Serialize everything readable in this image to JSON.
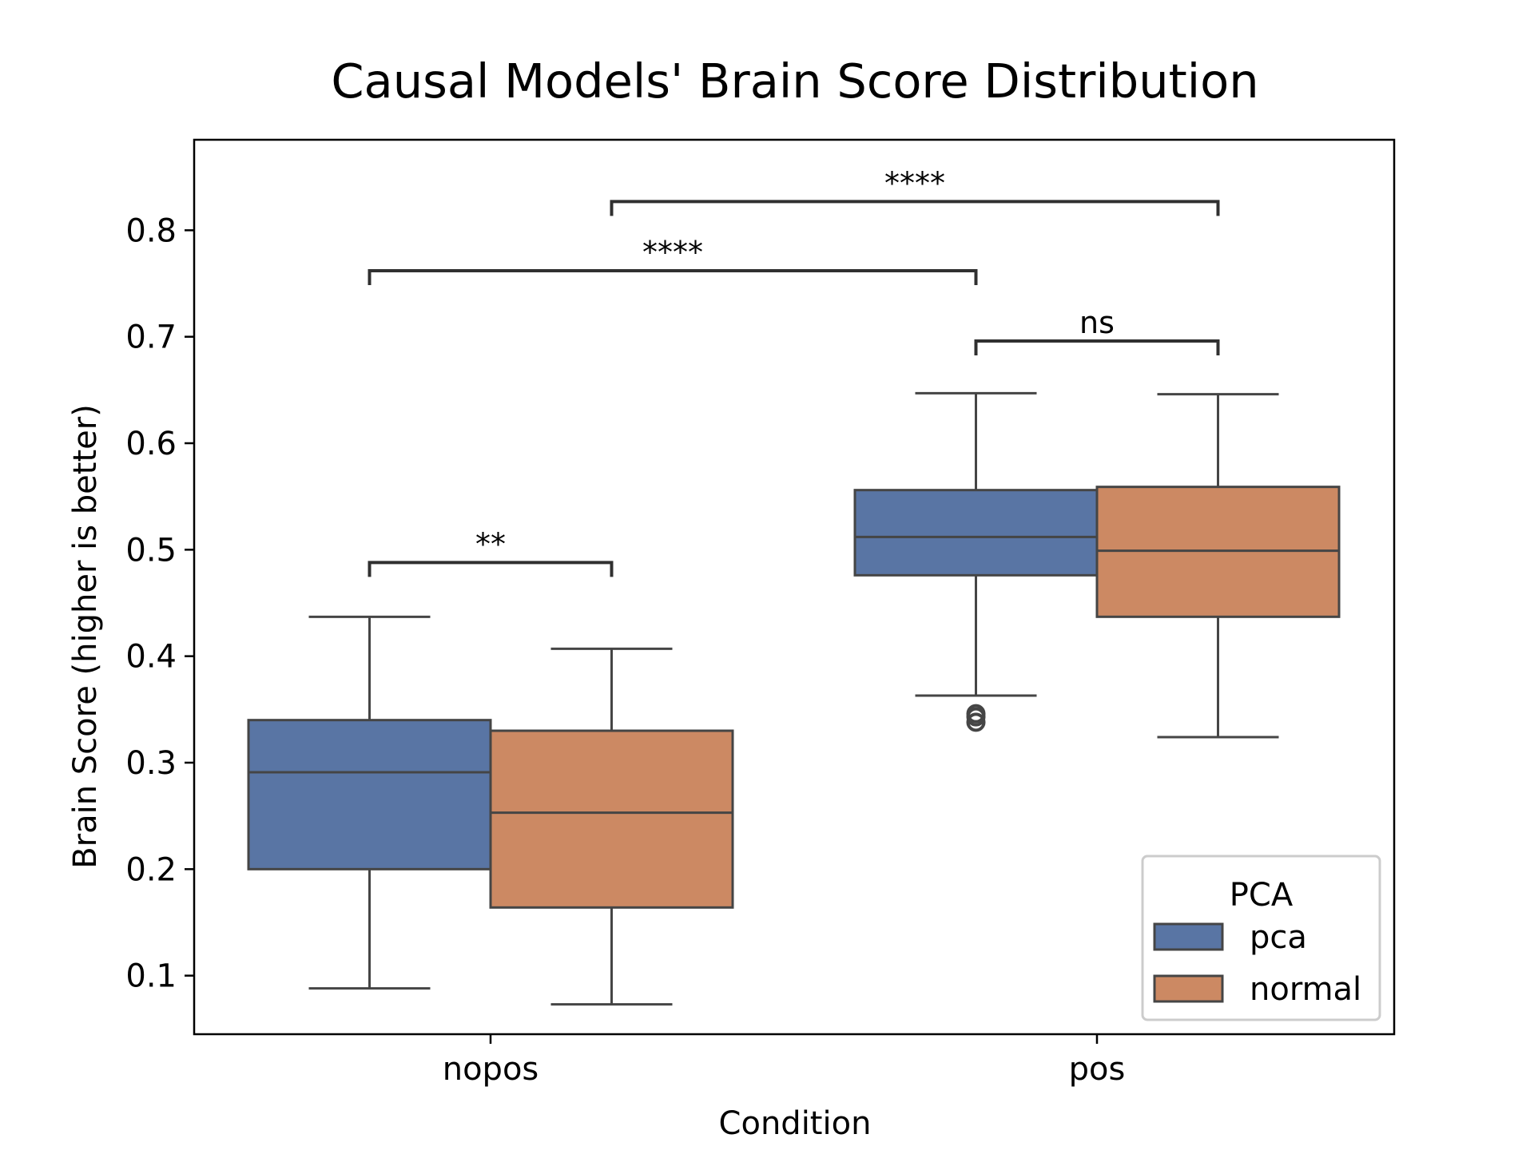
{
  "chart_data": {
    "type": "box",
    "title": "Causal Models' Brain Score Distribution",
    "xlabel": "Condition",
    "ylabel": "Brain Score (higher is better)",
    "ylim": [
      0.045,
      0.885
    ],
    "yticks": [
      0.1,
      0.2,
      0.3,
      0.4,
      0.5,
      0.6,
      0.7,
      0.8
    ],
    "ytick_labels": [
      "0.1",
      "0.2",
      "0.3",
      "0.4",
      "0.5",
      "0.6",
      "0.7",
      "0.8"
    ],
    "categories": [
      "nopos",
      "pos"
    ],
    "grid": false,
    "legend": {
      "title": "PCA",
      "position": "bottom-right",
      "entries": [
        {
          "label": "pca",
          "color": "#5975a4"
        },
        {
          "label": "normal",
          "color": "#cc8963"
        }
      ]
    },
    "series": [
      {
        "name": "pca",
        "color": "#5975a4",
        "boxes": [
          {
            "category": "nopos",
            "whislo": 0.088,
            "q1": 0.2,
            "median": 0.291,
            "q3": 0.34,
            "whishi": 0.437,
            "fliers": []
          },
          {
            "category": "pos",
            "whislo": 0.363,
            "q1": 0.476,
            "median": 0.512,
            "q3": 0.556,
            "whishi": 0.647,
            "fliers": [
              0.338,
              0.343,
              0.346
            ]
          }
        ]
      },
      {
        "name": "normal",
        "color": "#cc8963",
        "boxes": [
          {
            "category": "nopos",
            "whislo": 0.073,
            "q1": 0.164,
            "median": 0.253,
            "q3": 0.33,
            "whishi": 0.407,
            "fliers": []
          },
          {
            "category": "pos",
            "whislo": 0.324,
            "q1": 0.437,
            "median": 0.499,
            "q3": 0.559,
            "whishi": 0.646,
            "fliers": []
          }
        ]
      }
    ],
    "annotations": [
      {
        "from": {
          "category": "nopos",
          "series": "pca"
        },
        "to": {
          "category": "nopos",
          "series": "normal"
        },
        "level": 0.488,
        "text": "**"
      },
      {
        "from": {
          "category": "pos",
          "series": "pca"
        },
        "to": {
          "category": "pos",
          "series": "normal"
        },
        "level": 0.696,
        "text": "ns"
      },
      {
        "from": {
          "category": "nopos",
          "series": "pca"
        },
        "to": {
          "category": "pos",
          "series": "pca"
        },
        "level": 0.762,
        "text": "****"
      },
      {
        "from": {
          "category": "nopos",
          "series": "normal"
        },
        "to": {
          "category": "pos",
          "series": "normal"
        },
        "level": 0.827,
        "text": "****"
      }
    ]
  }
}
